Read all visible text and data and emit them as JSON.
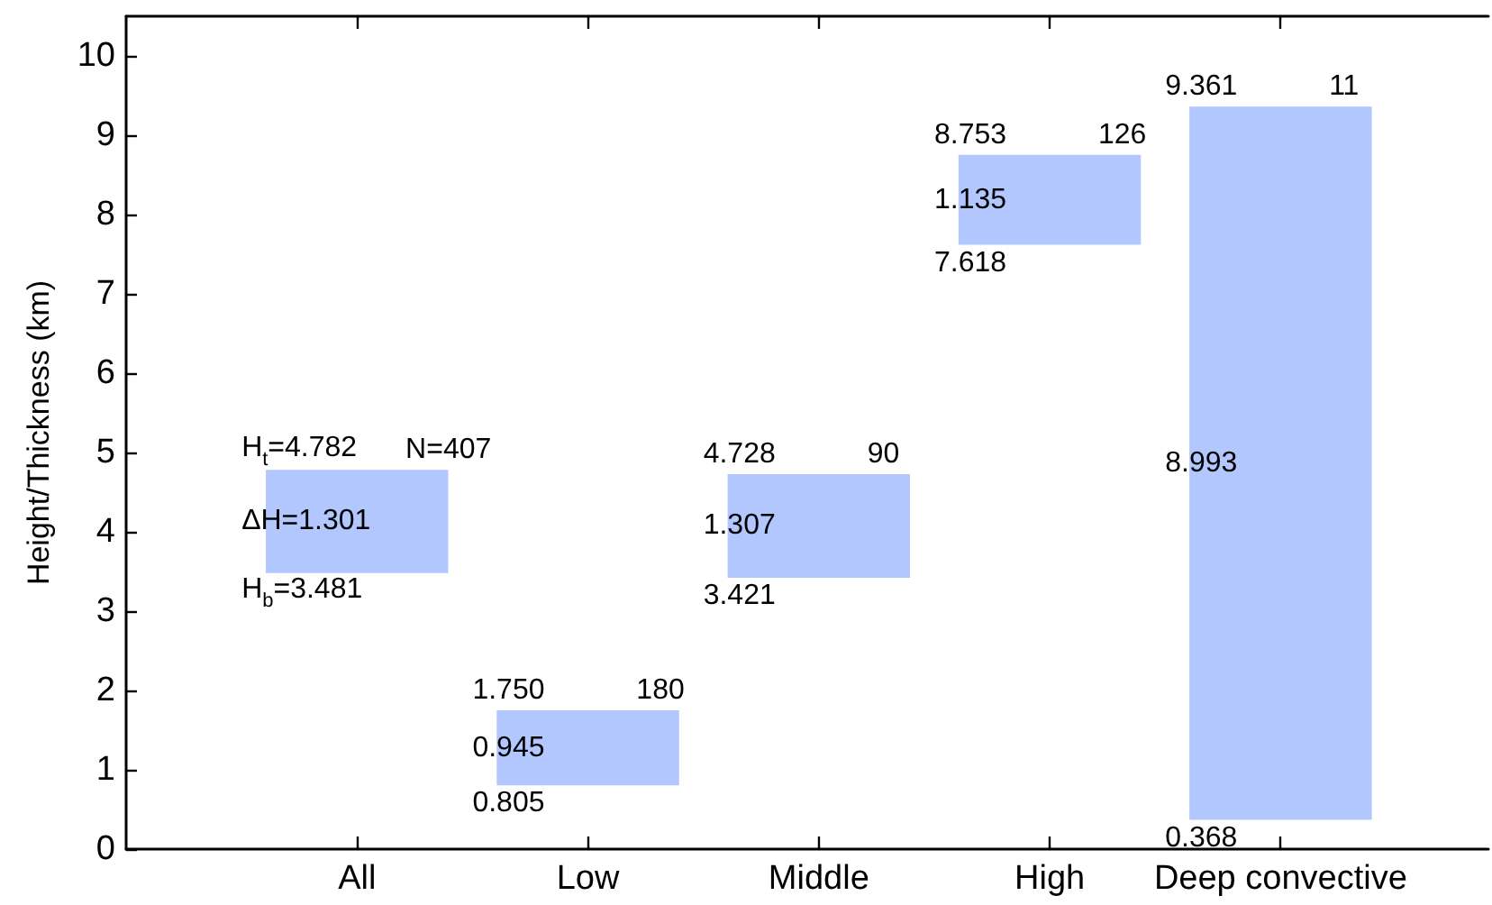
{
  "chart_data": {
    "type": "bar",
    "ylabel": "Height/Thickness (km)",
    "categories": [
      "All",
      "Low",
      "Middle",
      "High",
      "Deep convective"
    ],
    "values": [
      1.301,
      0.945,
      1.307,
      1.135,
      8.993
    ],
    "base": [
      3.481,
      0.805,
      3.421,
      7.618,
      0.368
    ],
    "color": "#b3c7ff",
    "value_labels": [
      "ΔH=1.301",
      "0.945",
      "1.307",
      "1.135",
      "8.993"
    ],
    "ylim": [
      0,
      10.5
    ],
    "yticks": [
      0,
      1,
      2,
      3,
      4,
      5,
      6,
      7,
      8,
      9,
      10
    ],
    "annotations": [
      {
        "text": "H$_{t}$=4.782",
        "x": "All",
        "y": 4.782
      },
      {
        "text": "N=407",
        "x": "All",
        "y": 4.782
      },
      {
        "text": "H$_{b}$=3.481",
        "x": "All",
        "y": 3.481
      },
      {
        "text": "1.750",
        "x": "Low",
        "y": 1.75
      },
      {
        "text": "180",
        "x": "Low",
        "y": 1.75
      },
      {
        "text": "0.805",
        "x": "Low",
        "y": 0.805
      },
      {
        "text": "4.728",
        "x": "Middle",
        "y": 4.728
      },
      {
        "text": "90",
        "x": "Middle",
        "y": 4.728
      },
      {
        "text": "3.421",
        "x": "Middle",
        "y": 3.421
      },
      {
        "text": "8.753",
        "x": "High",
        "y": 8.753
      },
      {
        "text": "126",
        "x": "High",
        "y": 8.753
      },
      {
        "text": "7.618",
        "x": "High",
        "y": 7.618
      },
      {
        "text": "9.361",
        "x": "Deep convective",
        "y": 9.361
      },
      {
        "text": "11",
        "x": "Deep convective",
        "y": 9.361
      },
      {
        "text": "0.368",
        "x": "Deep convective",
        "y": 0.368
      }
    ]
  }
}
